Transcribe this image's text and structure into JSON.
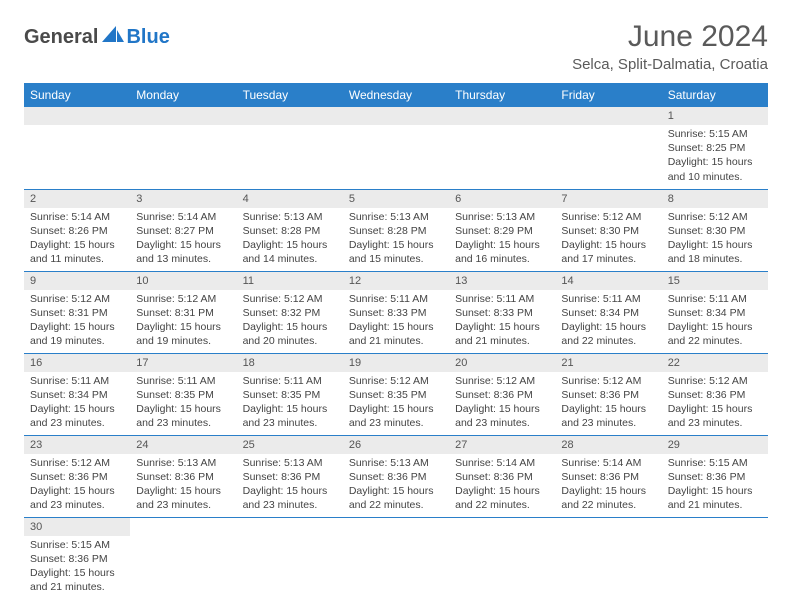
{
  "logo": {
    "part1": "General",
    "part2": "Blue"
  },
  "title": "June 2024",
  "location": "Selca, Split-Dalmatia, Croatia",
  "colors": {
    "header_bg": "#2a7fc9",
    "header_text": "#ffffff",
    "daynum_bg": "#ebebeb",
    "border": "#2a7fc9",
    "logo_gray": "#4a4a4a",
    "logo_blue": "#2176c7",
    "text": "#444444",
    "title_color": "#5a5a5a"
  },
  "typography": {
    "title_fontsize": 30,
    "location_fontsize": 15,
    "weekday_fontsize": 12,
    "daynum_fontsize": 11,
    "content_fontsize": 10.5
  },
  "weekdays": [
    "Sunday",
    "Monday",
    "Tuesday",
    "Wednesday",
    "Thursday",
    "Friday",
    "Saturday"
  ],
  "weeks": [
    [
      null,
      null,
      null,
      null,
      null,
      null,
      {
        "n": "1",
        "sr": "5:15 AM",
        "ss": "8:25 PM",
        "dl": "15 hours and 10 minutes."
      }
    ],
    [
      {
        "n": "2",
        "sr": "5:14 AM",
        "ss": "8:26 PM",
        "dl": "15 hours and 11 minutes."
      },
      {
        "n": "3",
        "sr": "5:14 AM",
        "ss": "8:27 PM",
        "dl": "15 hours and 13 minutes."
      },
      {
        "n": "4",
        "sr": "5:13 AM",
        "ss": "8:28 PM",
        "dl": "15 hours and 14 minutes."
      },
      {
        "n": "5",
        "sr": "5:13 AM",
        "ss": "8:28 PM",
        "dl": "15 hours and 15 minutes."
      },
      {
        "n": "6",
        "sr": "5:13 AM",
        "ss": "8:29 PM",
        "dl": "15 hours and 16 minutes."
      },
      {
        "n": "7",
        "sr": "5:12 AM",
        "ss": "8:30 PM",
        "dl": "15 hours and 17 minutes."
      },
      {
        "n": "8",
        "sr": "5:12 AM",
        "ss": "8:30 PM",
        "dl": "15 hours and 18 minutes."
      }
    ],
    [
      {
        "n": "9",
        "sr": "5:12 AM",
        "ss": "8:31 PM",
        "dl": "15 hours and 19 minutes."
      },
      {
        "n": "10",
        "sr": "5:12 AM",
        "ss": "8:31 PM",
        "dl": "15 hours and 19 minutes."
      },
      {
        "n": "11",
        "sr": "5:12 AM",
        "ss": "8:32 PM",
        "dl": "15 hours and 20 minutes."
      },
      {
        "n": "12",
        "sr": "5:11 AM",
        "ss": "8:33 PM",
        "dl": "15 hours and 21 minutes."
      },
      {
        "n": "13",
        "sr": "5:11 AM",
        "ss": "8:33 PM",
        "dl": "15 hours and 21 minutes."
      },
      {
        "n": "14",
        "sr": "5:11 AM",
        "ss": "8:34 PM",
        "dl": "15 hours and 22 minutes."
      },
      {
        "n": "15",
        "sr": "5:11 AM",
        "ss": "8:34 PM",
        "dl": "15 hours and 22 minutes."
      }
    ],
    [
      {
        "n": "16",
        "sr": "5:11 AM",
        "ss": "8:34 PM",
        "dl": "15 hours and 23 minutes."
      },
      {
        "n": "17",
        "sr": "5:11 AM",
        "ss": "8:35 PM",
        "dl": "15 hours and 23 minutes."
      },
      {
        "n": "18",
        "sr": "5:11 AM",
        "ss": "8:35 PM",
        "dl": "15 hours and 23 minutes."
      },
      {
        "n": "19",
        "sr": "5:12 AM",
        "ss": "8:35 PM",
        "dl": "15 hours and 23 minutes."
      },
      {
        "n": "20",
        "sr": "5:12 AM",
        "ss": "8:36 PM",
        "dl": "15 hours and 23 minutes."
      },
      {
        "n": "21",
        "sr": "5:12 AM",
        "ss": "8:36 PM",
        "dl": "15 hours and 23 minutes."
      },
      {
        "n": "22",
        "sr": "5:12 AM",
        "ss": "8:36 PM",
        "dl": "15 hours and 23 minutes."
      }
    ],
    [
      {
        "n": "23",
        "sr": "5:12 AM",
        "ss": "8:36 PM",
        "dl": "15 hours and 23 minutes."
      },
      {
        "n": "24",
        "sr": "5:13 AM",
        "ss": "8:36 PM",
        "dl": "15 hours and 23 minutes."
      },
      {
        "n": "25",
        "sr": "5:13 AM",
        "ss": "8:36 PM",
        "dl": "15 hours and 23 minutes."
      },
      {
        "n": "26",
        "sr": "5:13 AM",
        "ss": "8:36 PM",
        "dl": "15 hours and 22 minutes."
      },
      {
        "n": "27",
        "sr": "5:14 AM",
        "ss": "8:36 PM",
        "dl": "15 hours and 22 minutes."
      },
      {
        "n": "28",
        "sr": "5:14 AM",
        "ss": "8:36 PM",
        "dl": "15 hours and 22 minutes."
      },
      {
        "n": "29",
        "sr": "5:15 AM",
        "ss": "8:36 PM",
        "dl": "15 hours and 21 minutes."
      }
    ],
    [
      {
        "n": "30",
        "sr": "5:15 AM",
        "ss": "8:36 PM",
        "dl": "15 hours and 21 minutes."
      },
      null,
      null,
      null,
      null,
      null,
      null
    ]
  ],
  "labels": {
    "sunrise": "Sunrise:",
    "sunset": "Sunset:",
    "daylight": "Daylight:"
  }
}
